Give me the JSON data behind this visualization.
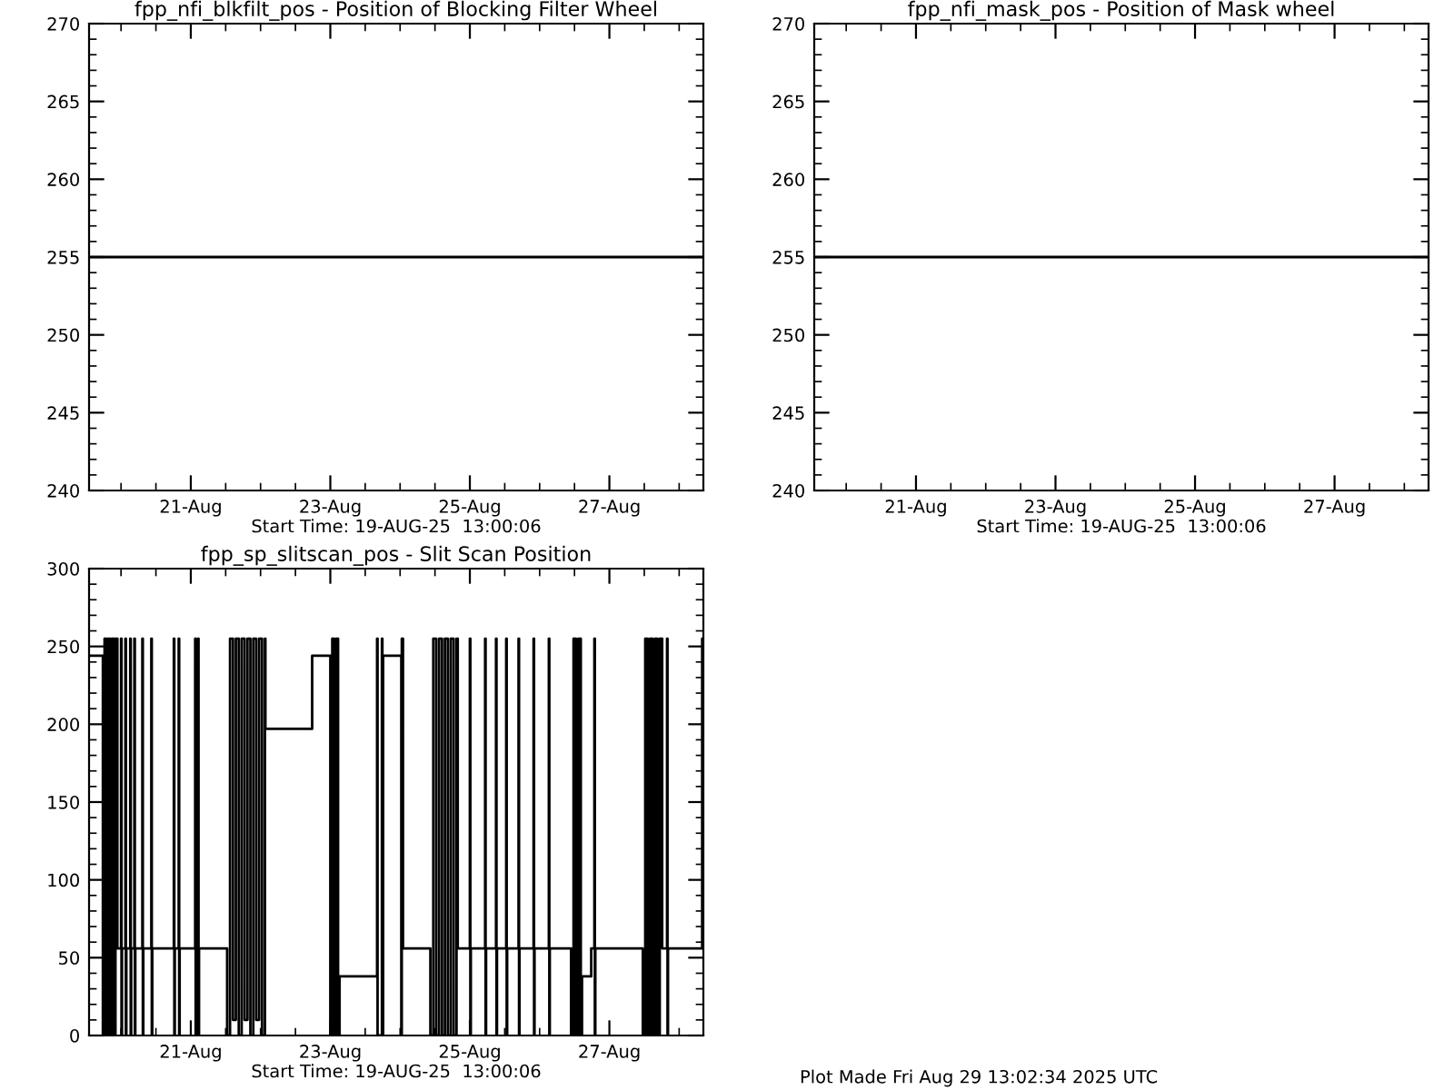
{
  "chart_data": [
    {
      "type": "line",
      "title": "fpp_nfi_blkfilt_pos - Position of Blocking Filter Wheel",
      "xlabel": "Start Time: 19-AUG-25  13:00:06",
      "series": [
        {
          "color": "#000000",
          "x": [
            "2025-08-19T13:00",
            "2025-08-28T08:20"
          ],
          "values": [
            255,
            255
          ]
        }
      ],
      "xlim": [
        "2025-08-19T13:00",
        "2025-08-28T08:20"
      ],
      "xticks": [
        {
          "value": "2025-08-21",
          "label": "21-Aug"
        },
        {
          "value": "2025-08-23",
          "label": "23-Aug"
        },
        {
          "value": "2025-08-25",
          "label": "25-Aug"
        },
        {
          "value": "2025-08-27",
          "label": "27-Aug"
        }
      ],
      "ylim": [
        240,
        270
      ],
      "yticks": [
        240,
        245,
        250,
        255,
        260,
        265,
        270
      ]
    },
    {
      "type": "line",
      "title": "fpp_nfi_mask_pos - Position of Mask wheel",
      "xlabel": "Start Time: 19-AUG-25  13:00:06",
      "series": [
        {
          "color": "#000000",
          "x": [
            "2025-08-19T13:00",
            "2025-08-28T08:20"
          ],
          "values": [
            255,
            255
          ]
        }
      ],
      "xlim": [
        "2025-08-19T13:00",
        "2025-08-28T08:20"
      ],
      "xticks": [
        {
          "value": "2025-08-21",
          "label": "21-Aug"
        },
        {
          "value": "2025-08-23",
          "label": "23-Aug"
        },
        {
          "value": "2025-08-25",
          "label": "25-Aug"
        },
        {
          "value": "2025-08-27",
          "label": "27-Aug"
        }
      ],
      "ylim": [
        240,
        270
      ],
      "yticks": [
        240,
        245,
        250,
        255,
        260,
        265,
        270
      ]
    },
    {
      "type": "step",
      "title": "fpp_sp_slitscan_pos - Slit Scan Position",
      "xlabel": "Start Time: 19-AUG-25  13:00:06",
      "annotations": [
        "Plot Made Fri Aug 29 13:02:34 2025 UTC"
      ],
      "series": [
        {
          "color": "#000000",
          "x": [
            "2025-08-19T13:00",
            "2025-08-19T17:20",
            "2025-08-19T17:45",
            "2025-08-19T18:20",
            "2025-08-19T19:00",
            "2025-08-19T19:35",
            "2025-08-19T20:15",
            "2025-08-19T20:50",
            "2025-08-19T21:30",
            "2025-08-19T22:05",
            "2025-08-19T22:45",
            "2025-08-20T00:00",
            "2025-08-20T00:10",
            "2025-08-20T00:20",
            "2025-08-20T01:30",
            "2025-08-20T01:40",
            "2025-08-20T01:50",
            "2025-08-20T03:10",
            "2025-08-20T03:20",
            "2025-08-20T03:30",
            "2025-08-20T04:35",
            "2025-08-20T04:45",
            "2025-08-20T04:55",
            "2025-08-20T07:20",
            "2025-08-20T07:30",
            "2025-08-20T07:40",
            "2025-08-20T10:25",
            "2025-08-20T10:35",
            "2025-08-20T10:45",
            "2025-08-20T18:10",
            "2025-08-20T18:20",
            "2025-08-20T18:30",
            "2025-08-20T19:50",
            "2025-08-20T20:00",
            "2025-08-20T20:10",
            "2025-08-21T01:30",
            "2025-08-21T01:40",
            "2025-08-21T01:50",
            "2025-08-21T02:30",
            "2025-08-21T02:40",
            "2025-08-21T02:50",
            "2025-08-21T12:30",
            "2025-08-21T13:30",
            "2025-08-21T14:30",
            "2025-08-21T15:30",
            "2025-08-21T16:30",
            "2025-08-21T17:30",
            "2025-08-21T18:30",
            "2025-08-21T19:30",
            "2025-08-21T20:30",
            "2025-08-21T21:30",
            "2025-08-21T22:30",
            "2025-08-21T23:30",
            "2025-08-22T00:30",
            "2025-08-22T01:30",
            "2025-08-22T01:40",
            "2025-08-22T17:45",
            "2025-08-23T00:00",
            "2025-08-23T00:40",
            "2025-08-23T01:20",
            "2025-08-23T02:00",
            "2025-08-23T02:40",
            "2025-08-23T03:10",
            "2025-08-23T16:05",
            "2025-08-23T16:15",
            "2025-08-23T17:45",
            "2025-08-23T17:55",
            "2025-08-23T18:10",
            "2025-08-24T00:25",
            "2025-08-24T00:35",
            "2025-08-24T01:00",
            "2025-08-24T10:25",
            "2025-08-24T11:25",
            "2025-08-24T12:25",
            "2025-08-24T13:25",
            "2025-08-24T14:25",
            "2025-08-24T15:25",
            "2025-08-24T16:25",
            "2025-08-24T17:25",
            "2025-08-24T18:25",
            "2025-08-24T19:25",
            "2025-08-24T19:50",
            "2025-08-25T00:00",
            "2025-08-25T00:10",
            "2025-08-25T00:20",
            "2025-08-25T05:15",
            "2025-08-25T05:25",
            "2025-08-25T05:35",
            "2025-08-25T09:00",
            "2025-08-25T09:10",
            "2025-08-25T09:20",
            "2025-08-25T12:30",
            "2025-08-25T12:40",
            "2025-08-25T12:50",
            "2025-08-25T16:45",
            "2025-08-25T16:55",
            "2025-08-25T17:05",
            "2025-08-25T21:55",
            "2025-08-25T22:05",
            "2025-08-25T22:15",
            "2025-08-26T03:10",
            "2025-08-26T03:20",
            "2025-08-26T03:30",
            "2025-08-26T10:50",
            "2025-08-26T11:40",
            "2025-08-26T12:30",
            "2025-08-26T13:20",
            "2025-08-26T14:10",
            "2025-08-26T14:35",
            "2025-08-26T17:45",
            "2025-08-26T18:50",
            "2025-08-26T19:00",
            "2025-08-26T19:10",
            "2025-08-27T11:30",
            "2025-08-27T12:20",
            "2025-08-27T13:10",
            "2025-08-27T14:00",
            "2025-08-27T14:50",
            "2025-08-27T15:40",
            "2025-08-27T16:30",
            "2025-08-27T17:20",
            "2025-08-27T18:10",
            "2025-08-27T19:50",
            "2025-08-27T20:00",
            "2025-08-27T20:10",
            "2025-08-28T07:55",
            "2025-08-28T08:20"
          ],
          "values": [
            244,
            244,
            0,
            255,
            0,
            255,
            0,
            255,
            0,
            255,
            56,
            255,
            0,
            56,
            255,
            0,
            56,
            255,
            0,
            56,
            255,
            0,
            56,
            255,
            0,
            56,
            255,
            0,
            56,
            255,
            0,
            56,
            255,
            0,
            56,
            255,
            0,
            56,
            255,
            0,
            56,
            0,
            255,
            10,
            255,
            0,
            255,
            10,
            255,
            0,
            255,
            10,
            255,
            0,
            255,
            197,
            244,
            0,
            255,
            0,
            255,
            0,
            38,
            255,
            0,
            255,
            0,
            244,
            0,
            255,
            56,
            0,
            255,
            0,
            255,
            0,
            255,
            0,
            255,
            0,
            255,
            56,
            255,
            0,
            56,
            255,
            0,
            56,
            255,
            0,
            56,
            255,
            0,
            56,
            255,
            0,
            56,
            255,
            0,
            56,
            255,
            0,
            56,
            0,
            255,
            0,
            255,
            0,
            38,
            56,
            255,
            0,
            56,
            0,
            255,
            0,
            255,
            0,
            255,
            0,
            255,
            56,
            255,
            0,
            56,
            255,
            170
          ]
        }
      ],
      "xlim": [
        "2025-08-19T13:00",
        "2025-08-28T08:20"
      ],
      "xticks": [
        {
          "value": "2025-08-21",
          "label": "21-Aug"
        },
        {
          "value": "2025-08-23",
          "label": "23-Aug"
        },
        {
          "value": "2025-08-25",
          "label": "25-Aug"
        },
        {
          "value": "2025-08-27",
          "label": "27-Aug"
        }
      ],
      "ylim": [
        0,
        300
      ],
      "yticks": [
        0,
        50,
        100,
        150,
        200,
        250,
        300
      ]
    }
  ]
}
